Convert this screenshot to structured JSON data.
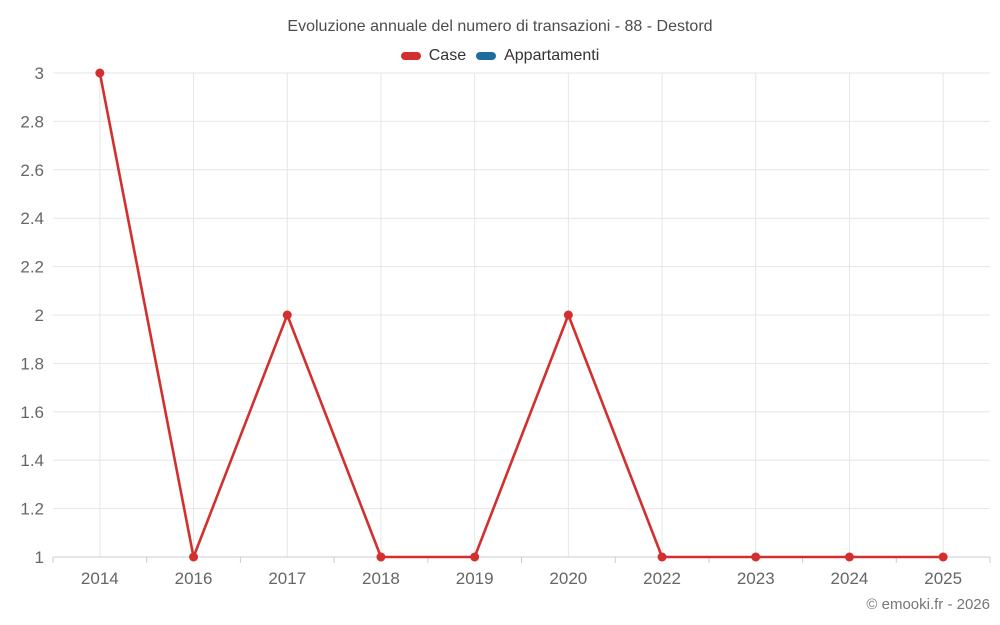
{
  "chart_data": {
    "type": "line",
    "title": "Evoluzione annuale del numero di transazioni - 88 - Destord",
    "categories": [
      "2014",
      "2016",
      "2017",
      "2018",
      "2019",
      "2020",
      "2022",
      "2023",
      "2024",
      "2025"
    ],
    "series": [
      {
        "name": "Case",
        "color": "#d32f2f",
        "values": [
          3,
          1,
          2,
          1,
          1,
          2,
          1,
          1,
          1,
          1
        ]
      },
      {
        "name": "Appartamenti",
        "color": "#1f6d9e",
        "values": []
      }
    ],
    "ylim": [
      1,
      3
    ],
    "ytick_step": 0.2,
    "ytick_labels": [
      "1",
      "1.2",
      "1.4",
      "1.6",
      "1.8",
      "2",
      "2.2",
      "2.4",
      "2.6",
      "2.8",
      "3"
    ],
    "grid": true,
    "legend_position": "top",
    "colors": {
      "grid": "#e6e6e6",
      "axis_line": "#cccccc",
      "axis_label": "#666666",
      "title_text": "#4d4d4d",
      "legend_text": "#333333"
    }
  },
  "footer": {
    "copyright": "© emooki.fr - 2026"
  }
}
